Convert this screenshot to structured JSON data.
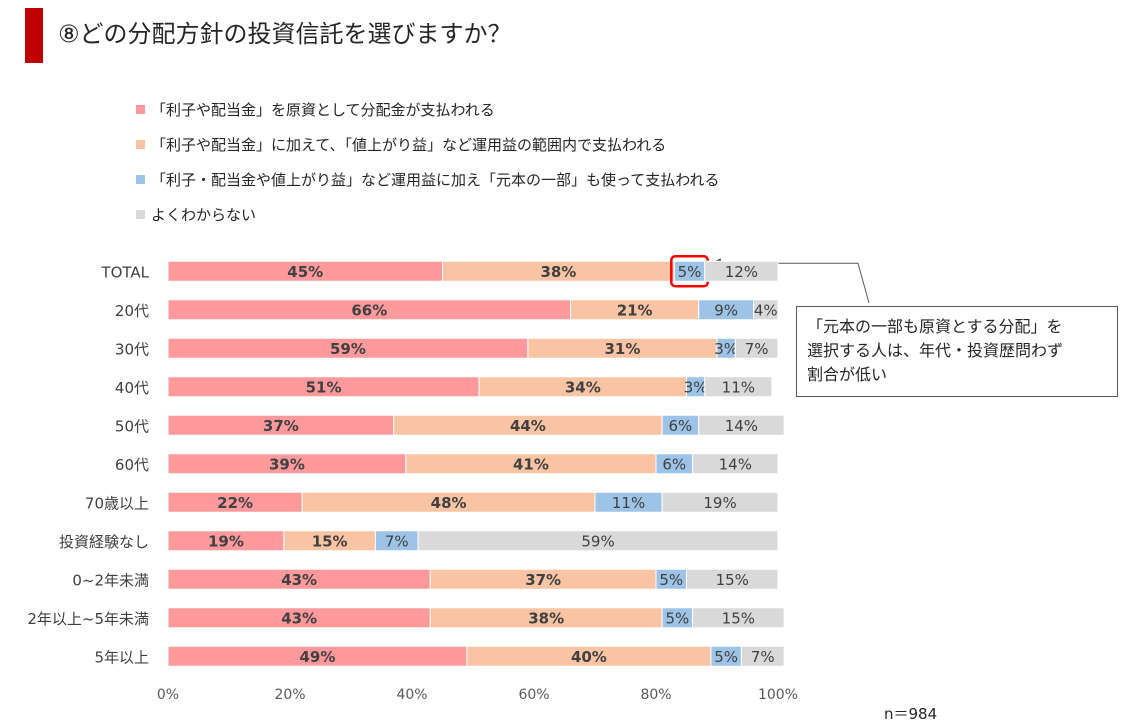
{
  "title": "⑧どの分配方針の投資信託を選びますか？",
  "annotation": {
    "line1": "「元本の一部も原資とする分配」を",
    "line2": "選択する人は、年代・投資歴問わず",
    "line3": "割合が低い"
  },
  "sample_size": "n＝984",
  "chart_data": {
    "type": "bar",
    "orientation": "horizontal",
    "stacked": true,
    "percent_stacked": true,
    "categories": [
      "TOTAL",
      "20代",
      "30代",
      "40代",
      "50代",
      "60代",
      "70歳以上",
      "投資経験なし",
      "0~2年未満",
      "2年以上~5年未満",
      "5年以上"
    ],
    "series": [
      {
        "name": "「利子や配当金」を原資として分配金が支払われる",
        "color": "#ff999c",
        "values": [
          45,
          66,
          59,
          51,
          37,
          39,
          22,
          19,
          43,
          43,
          49
        ]
      },
      {
        "name": "「利子や配当金」に加えて、「値上がり益」など運用益の範囲内で支払われる",
        "color": "#f8c4a3",
        "values": [
          38,
          21,
          31,
          34,
          44,
          41,
          48,
          15,
          37,
          38,
          40
        ]
      },
      {
        "name": "「利子・配当金や値上がり益」など運用益に加え「元本の一部」も使って支払われる",
        "color": "#9dc3e6",
        "values": [
          5,
          9,
          3,
          3,
          6,
          6,
          11,
          7,
          5,
          5,
          5
        ]
      },
      {
        "name": "よくわからない",
        "color": "#d9d9d9",
        "values": [
          12,
          4,
          7,
          11,
          14,
          14,
          19,
          59,
          15,
          15,
          7
        ]
      }
    ],
    "xlim": [
      0,
      100
    ],
    "xticks": [
      "0%",
      "20%",
      "40%",
      "60%",
      "80%",
      "100%"
    ],
    "legend_position": "top-left",
    "grid": false,
    "highlight": {
      "category": "TOTAL",
      "series_index": 2,
      "color": "#ff0000"
    }
  }
}
